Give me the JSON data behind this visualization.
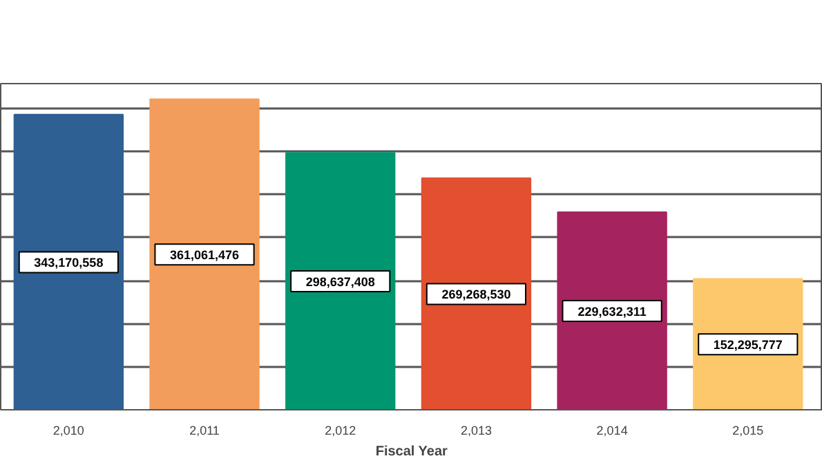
{
  "chart_data": {
    "type": "bar",
    "xlabel": "Fiscal Year",
    "categories": [
      "2,010",
      "2,011",
      "2,012",
      "2,013",
      "2,014",
      "2,015"
    ],
    "values": [
      343170558,
      361061476,
      298637408,
      269268530,
      229632311,
      152295777
    ],
    "value_labels": [
      "343,170,558",
      "361,061,476",
      "298,637,408",
      "269,268,530",
      "229,632,311",
      "152,295,777"
    ],
    "colors": [
      "#2e6093",
      "#f29d5b",
      "#009670",
      "#e2502f",
      "#a5235e",
      "#fcc86b"
    ],
    "grid": "y",
    "tick_labels": "x"
  }
}
